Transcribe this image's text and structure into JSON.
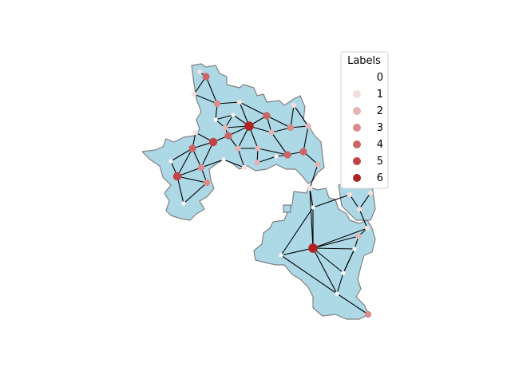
{
  "legend": {
    "title": "Labels",
    "entries": [
      {
        "label": "0",
        "color": "#ffffff"
      },
      {
        "label": "1",
        "color": "#f5dede"
      },
      {
        "label": "2",
        "color": "#e4b4b4"
      },
      {
        "label": "3",
        "color": "#d98c8c"
      },
      {
        "label": "4",
        "color": "#cd6565"
      },
      {
        "label": "5",
        "color": "#c24444"
      },
      {
        "label": "6",
        "color": "#b22222"
      }
    ]
  },
  "colors": {
    "region_fill": "#add8e6",
    "region_edge": "#808080",
    "graph_edge": "#000000",
    "background": "#ffffff"
  }
}
